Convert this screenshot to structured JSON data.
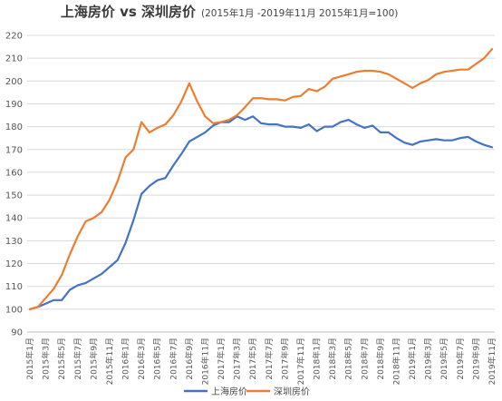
{
  "chart_data": {
    "type": "line",
    "title": "上海房价 vs 深圳房价",
    "subtitle": "(2015年1月 -2019年11月 2015年1月=100)",
    "ylim": [
      90,
      220
    ],
    "yticks": [
      90,
      100,
      110,
      120,
      130,
      140,
      150,
      160,
      170,
      180,
      190,
      200,
      210,
      220
    ],
    "grid": "horizontal",
    "legend_position": "bottom-center",
    "x": [
      "2015年1月",
      "2015年2月",
      "2015年3月",
      "2015年4月",
      "2015年5月",
      "2015年6月",
      "2015年7月",
      "2015年8月",
      "2015年9月",
      "2015年10月",
      "2015年11月",
      "2015年12月",
      "2016年1月",
      "2016年2月",
      "2016年3月",
      "2016年4月",
      "2016年5月",
      "2016年6月",
      "2016年7月",
      "2016年8月",
      "2016年9月",
      "2016年10月",
      "2016年11月",
      "2016年12月",
      "2017年1月",
      "2017年2月",
      "2017年3月",
      "2017年4月",
      "2017年5月",
      "2017年6月",
      "2017年7月",
      "2017年8月",
      "2017年9月",
      "2017年10月",
      "2017年11月",
      "2017年12月",
      "2018年1月",
      "2018年2月",
      "2018年3月",
      "2018年4月",
      "2018年5月",
      "2018年6月",
      "2018年7月",
      "2018年8月",
      "2018年9月",
      "2018年10月",
      "2018年11月",
      "2018年12月",
      "2019年1月",
      "2019年2月",
      "2019年3月",
      "2019年4月",
      "2019年5月",
      "2019年6月",
      "2019年7月",
      "2019年8月",
      "2019年9月",
      "2019年10月",
      "2019年11月"
    ],
    "xtick_labels": [
      "2015年1月",
      "2015年3月",
      "2015年5月",
      "2015年7月",
      "2015年9月",
      "2015年11月",
      "2016年1月",
      "2016年3月",
      "2016年5月",
      "2016年7月",
      "2016年9月",
      "2016年11月",
      "2017年1月",
      "2017年3月",
      "2017年5月",
      "2017年7月",
      "2017年9月",
      "2017年11月",
      "2018年1月",
      "2018年3月",
      "2018年5月",
      "2018年7月",
      "2018年9月",
      "2018年11月",
      "2019年1月",
      "2019年3月",
      "2019年5月",
      "2019年7月",
      "2019年9月",
      "2019年11月"
    ],
    "series": [
      {
        "name": "上海房价",
        "color": "#4472c4",
        "values": [
          100,
          101,
          102.5,
          104,
          104,
          108.5,
          110.5,
          111.5,
          113.5,
          115.5,
          118.5,
          121.5,
          129,
          139,
          150.5,
          154,
          156.5,
          157.5,
          163,
          168,
          173.5,
          175.5,
          177.5,
          180.5,
          182,
          182,
          184.5,
          183,
          184.5,
          181.5,
          181,
          181,
          180,
          180,
          179.5,
          181,
          178,
          180,
          180,
          182,
          183,
          181,
          179.5,
          180.5,
          177.5,
          177.5,
          175,
          173,
          172,
          173.5,
          174,
          174.5,
          174,
          174,
          175,
          175.5,
          173.5,
          172,
          171
        ]
      },
      {
        "name": "深圳房价",
        "color": "#ed7d31",
        "values": [
          100,
          101,
          105,
          109,
          115,
          124,
          132,
          138.5,
          140,
          142.5,
          148,
          156,
          166.5,
          170,
          182,
          177.5,
          179.5,
          181,
          185,
          191,
          199,
          191,
          184.5,
          181.5,
          182,
          183,
          185,
          188.5,
          192.5,
          192.5,
          192,
          192,
          191.5,
          193,
          193.5,
          196.5,
          195.5,
          197.5,
          201,
          202,
          203,
          204,
          204.5,
          204.5,
          204,
          203,
          201,
          199,
          197,
          199,
          200.5,
          203,
          204,
          204.5,
          205,
          205,
          207.5,
          210,
          214
        ]
      }
    ]
  }
}
